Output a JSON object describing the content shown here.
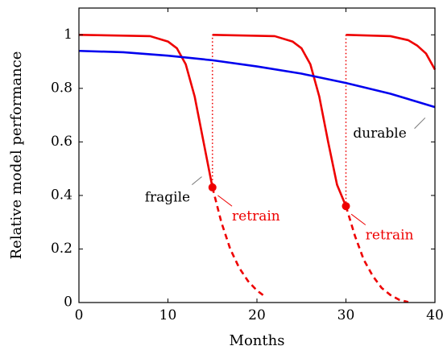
{
  "chart_data": {
    "type": "line",
    "xlabel": "Months",
    "ylabel": "Relative model performance",
    "xlim": [
      0,
      40
    ],
    "ylim": [
      0,
      1.1
    ],
    "xticks": [
      "0",
      "10",
      "20",
      "30",
      "40"
    ],
    "yticks": [
      "0",
      "0.2",
      "0.4",
      "0.6",
      "0.8",
      "1"
    ],
    "grid": false,
    "legend": "none",
    "series": [
      {
        "color": "#ee0000",
        "style": "solid",
        "points": [
          [
            0,
            1.0
          ],
          [
            8,
            0.995
          ],
          [
            10,
            0.975
          ],
          [
            11,
            0.95
          ],
          [
            12,
            0.89
          ],
          [
            13,
            0.77
          ],
          [
            14,
            0.6
          ],
          [
            15,
            0.43
          ]
        ]
      },
      {
        "color": "#ee0000",
        "style": "dashed",
        "points": [
          [
            15,
            0.43
          ],
          [
            16,
            0.3
          ],
          [
            17,
            0.2
          ],
          [
            18,
            0.13
          ],
          [
            19,
            0.08
          ],
          [
            20,
            0.045
          ],
          [
            21,
            0.02
          ]
        ]
      },
      {
        "color": "#ee0000",
        "style": "dotted",
        "points": [
          [
            15,
            0.43
          ],
          [
            15,
            1.0
          ]
        ]
      },
      {
        "color": "#ee0000",
        "style": "solid",
        "points": [
          [
            15,
            1.0
          ],
          [
            22,
            0.995
          ],
          [
            24,
            0.975
          ],
          [
            25,
            0.95
          ],
          [
            26,
            0.89
          ],
          [
            27,
            0.77
          ],
          [
            28,
            0.6
          ],
          [
            29,
            0.44
          ],
          [
            30,
            0.36
          ]
        ]
      },
      {
        "color": "#ee0000",
        "style": "dashed",
        "points": [
          [
            30,
            0.36
          ],
          [
            31,
            0.25
          ],
          [
            32,
            0.16
          ],
          [
            33,
            0.1
          ],
          [
            34,
            0.055
          ],
          [
            35,
            0.028
          ],
          [
            36,
            0.01
          ],
          [
            37,
            0.002
          ]
        ]
      },
      {
        "color": "#ee0000",
        "style": "dotted",
        "points": [
          [
            30,
            0.36
          ],
          [
            30,
            1.0
          ]
        ]
      },
      {
        "color": "#ee0000",
        "style": "solid",
        "points": [
          [
            30,
            1.0
          ],
          [
            35,
            0.995
          ],
          [
            37,
            0.98
          ],
          [
            38,
            0.96
          ],
          [
            39,
            0.93
          ],
          [
            40,
            0.87
          ]
        ]
      },
      {
        "color": "#0000ee",
        "style": "solid",
        "points": [
          [
            0,
            0.94
          ],
          [
            5,
            0.935
          ],
          [
            10,
            0.922
          ],
          [
            15,
            0.905
          ],
          [
            20,
            0.882
          ],
          [
            25,
            0.855
          ],
          [
            30,
            0.82
          ],
          [
            35,
            0.78
          ],
          [
            40,
            0.73
          ]
        ]
      }
    ],
    "markers": [
      {
        "x": 15,
        "y": 0.43,
        "color": "#ee0000"
      },
      {
        "x": 30,
        "y": 0.36,
        "color": "#ee0000"
      }
    ],
    "annotations": [
      {
        "text": "fragile",
        "color": "#000000",
        "anchor": "end",
        "x": 12.5,
        "y": 0.39,
        "pointer": [
          [
            12.7,
            0.44
          ],
          [
            13.8,
            0.47
          ]
        ]
      },
      {
        "text": "retrain",
        "color": "#ee0000",
        "anchor": "start",
        "x": 17.2,
        "y": 0.32,
        "pointer": [
          [
            15.6,
            0.4
          ],
          [
            17.2,
            0.36
          ]
        ]
      },
      {
        "text": "retrain",
        "color": "#ee0000",
        "anchor": "start",
        "x": 32.2,
        "y": 0.25,
        "pointer": [
          [
            30.6,
            0.33
          ],
          [
            32.2,
            0.29
          ]
        ]
      },
      {
        "text": "durable",
        "color": "#000000",
        "anchor": "start",
        "x": 30.8,
        "y": 0.63,
        "pointer": [
          [
            37.7,
            0.65
          ],
          [
            38.9,
            0.69
          ]
        ]
      }
    ]
  }
}
